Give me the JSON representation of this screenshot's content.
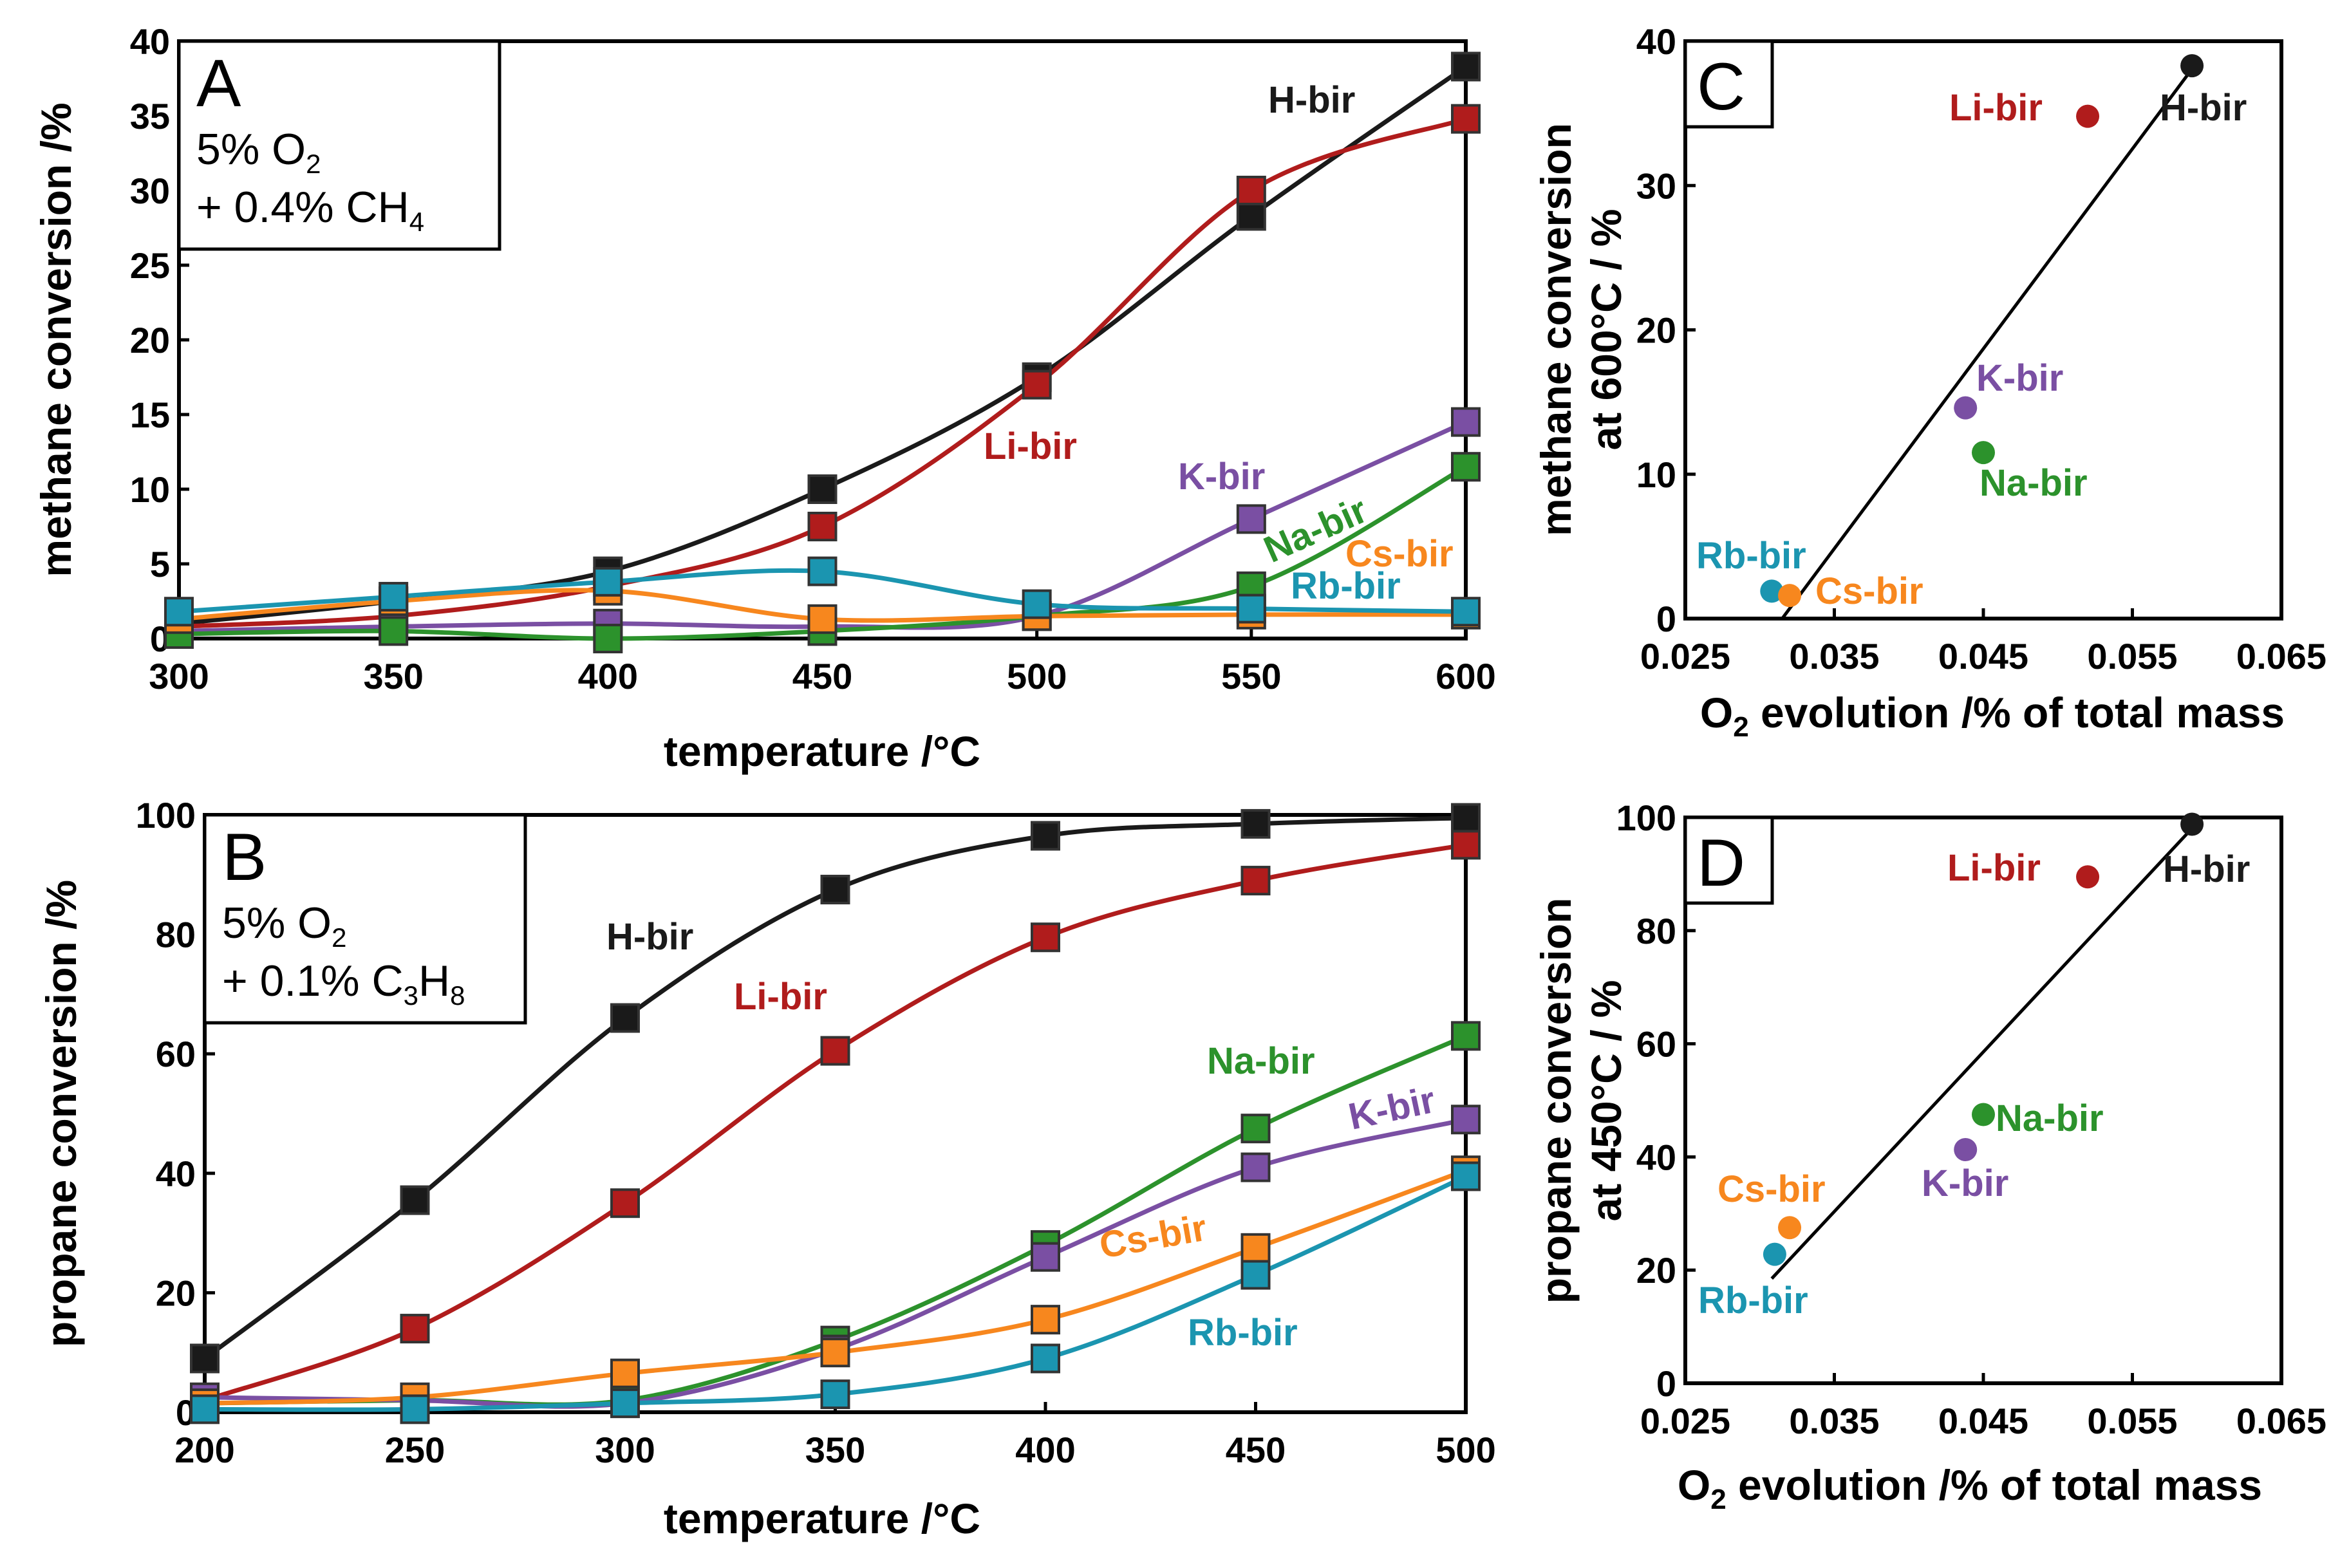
{
  "colors": {
    "H-bir": "#1a1a1a",
    "Li-bir": "#b01c1c",
    "K-bir": "#7a4fa3",
    "Na-bir": "#2c922c",
    "Cs-bir": "#f7871e",
    "Rb-bir": "#1b95b0"
  },
  "chart_data": [
    {
      "panel": "A",
      "type": "line",
      "panel_letter": "A",
      "conditions": {
        "line1_main": "5% O",
        "line1_sub": "2",
        "line2_main": "+ 0.4% CH",
        "line2_sub": "4"
      },
      "xlabel": "temperature /°C",
      "ylabel": "methane conversion /%",
      "xlim": [
        300,
        600
      ],
      "ylim": [
        0,
        40
      ],
      "xticks": [
        300,
        350,
        400,
        450,
        500,
        550,
        600
      ],
      "yticks": [
        0,
        5,
        10,
        15,
        20,
        25,
        30,
        35,
        40
      ],
      "x": [
        300,
        350,
        400,
        450,
        500,
        550,
        600
      ],
      "series": [
        {
          "name": "H-bir",
          "values": [
            1.0,
            2.5,
            4.5,
            10.0,
            17.5,
            28.3,
            38.3
          ]
        },
        {
          "name": "Li-bir",
          "values": [
            0.8,
            1.5,
            3.5,
            7.5,
            17.0,
            30.0,
            34.8
          ]
        },
        {
          "name": "K-bir",
          "values": [
            0.5,
            0.8,
            1.0,
            0.8,
            1.5,
            8.0,
            14.5
          ]
        },
        {
          "name": "Na-bir",
          "values": [
            0.3,
            0.5,
            0.0,
            0.5,
            1.5,
            3.5,
            11.5
          ]
        },
        {
          "name": "Cs-bir",
          "values": [
            1.3,
            2.5,
            3.2,
            1.3,
            1.5,
            1.6,
            1.6
          ]
        },
        {
          "name": "Rb-bir",
          "values": [
            1.8,
            2.8,
            3.8,
            4.5,
            2.3,
            2.0,
            1.8
          ]
        }
      ],
      "annotations": [
        {
          "series": "H-bir",
          "text": "H-bir"
        },
        {
          "series": "Li-bir",
          "text": "Li-bir"
        },
        {
          "series": "K-bir",
          "text": "K-bir"
        },
        {
          "series": "Na-bir",
          "text": "Na-bir"
        },
        {
          "series": "Cs-bir",
          "text": "Cs-bir"
        },
        {
          "series": "Rb-bir",
          "text": "Rb-bir"
        }
      ]
    },
    {
      "panel": "B",
      "type": "line",
      "panel_letter": "B",
      "conditions": {
        "line1_main": "5% O",
        "line1_sub": "2",
        "line2_main": "+ 0.1% C",
        "line2_sub": "3",
        "line2_main2": "H",
        "line2_sub2": "8"
      },
      "xlabel": "temperature /°C",
      "ylabel": "propane conversion /%",
      "xlim": [
        200,
        500
      ],
      "ylim": [
        0,
        100
      ],
      "xticks": [
        200,
        250,
        300,
        350,
        400,
        450,
        500
      ],
      "yticks": [
        0,
        20,
        40,
        60,
        80,
        100
      ],
      "x": [
        200,
        250,
        300,
        350,
        400,
        450,
        500
      ],
      "series": [
        {
          "name": "H-bir",
          "values": [
            9,
            35.5,
            66,
            87.5,
            96.5,
            98.5,
            99.5
          ]
        },
        {
          "name": "Li-bir",
          "values": [
            2,
            14,
            35,
            60.5,
            79.5,
            89,
            95
          ]
        },
        {
          "name": "Na-bir",
          "values": [
            1.5,
            2,
            2,
            12,
            28,
            47.5,
            63
          ]
        },
        {
          "name": "K-bir",
          "values": [
            2.5,
            2,
            1.5,
            10.5,
            26,
            41,
            49
          ]
        },
        {
          "name": "Cs-bir",
          "values": [
            1.5,
            2.5,
            6.5,
            10,
            15.5,
            27.5,
            40.5
          ]
        },
        {
          "name": "Rb-bir",
          "values": [
            0.5,
            0.5,
            1.5,
            3,
            9,
            23,
            39.5
          ]
        }
      ],
      "annotations": [
        {
          "series": "H-bir",
          "text": "H-bir"
        },
        {
          "series": "Li-bir",
          "text": "Li-bir"
        },
        {
          "series": "Na-bir",
          "text": "Na-bir"
        },
        {
          "series": "K-bir",
          "text": "K-bir"
        },
        {
          "series": "Cs-bir",
          "text": "Cs-bir"
        },
        {
          "series": "Rb-bir",
          "text": "Rb-bir"
        }
      ]
    },
    {
      "panel": "C",
      "type": "scatter",
      "panel_letter": "C",
      "xlabel_main": "O",
      "xlabel_sub": "2",
      "xlabel_rest": " evolution /% of total mass",
      "ylabel_line1": "methane conversion",
      "ylabel_line2": "at 600°C / %",
      "xlim": [
        0.025,
        0.065
      ],
      "ylim": [
        0,
        40
      ],
      "xticks": [
        "0.025",
        "0.035",
        "0.045",
        "0.055",
        "0.065"
      ],
      "yticks": [
        0,
        10,
        20,
        30,
        40
      ],
      "points": [
        {
          "name": "H-bir",
          "x": 0.059,
          "y": 38.3
        },
        {
          "name": "Li-bir",
          "x": 0.052,
          "y": 34.8
        },
        {
          "name": "K-bir",
          "x": 0.0438,
          "y": 14.6
        },
        {
          "name": "Na-bir",
          "x": 0.045,
          "y": 11.5
        },
        {
          "name": "Rb-bir",
          "x": 0.0308,
          "y": 1.9
        },
        {
          "name": "Cs-bir",
          "x": 0.032,
          "y": 1.6
        }
      ],
      "fit_line": {
        "x": [
          0.0315,
          0.0588
        ],
        "y": [
          0,
          37.8
        ]
      }
    },
    {
      "panel": "D",
      "type": "scatter",
      "panel_letter": "D",
      "xlabel_main": "O",
      "xlabel_sub": "2",
      "xlabel_rest": " evolution /% of total mass",
      "ylabel_line1": "propane conversion",
      "ylabel_line2": "at 450°C / %",
      "xlim": [
        0.025,
        0.065
      ],
      "ylim": [
        0,
        100
      ],
      "xticks": [
        "0.025",
        "0.035",
        "0.045",
        "0.055",
        "0.065"
      ],
      "yticks": [
        0,
        20,
        40,
        60,
        80,
        100
      ],
      "points": [
        {
          "name": "H-bir",
          "x": 0.059,
          "y": 98.8
        },
        {
          "name": "Li-bir",
          "x": 0.052,
          "y": 89.5
        },
        {
          "name": "Na-bir",
          "x": 0.045,
          "y": 47.5
        },
        {
          "name": "K-bir",
          "x": 0.0438,
          "y": 41.3
        },
        {
          "name": "Cs-bir",
          "x": 0.032,
          "y": 27.5
        },
        {
          "name": "Rb-bir",
          "x": 0.031,
          "y": 22.8
        }
      ],
      "fit_line": {
        "x": [
          0.0308,
          0.0588
        ],
        "y": [
          18.5,
          97.5
        ]
      }
    }
  ]
}
